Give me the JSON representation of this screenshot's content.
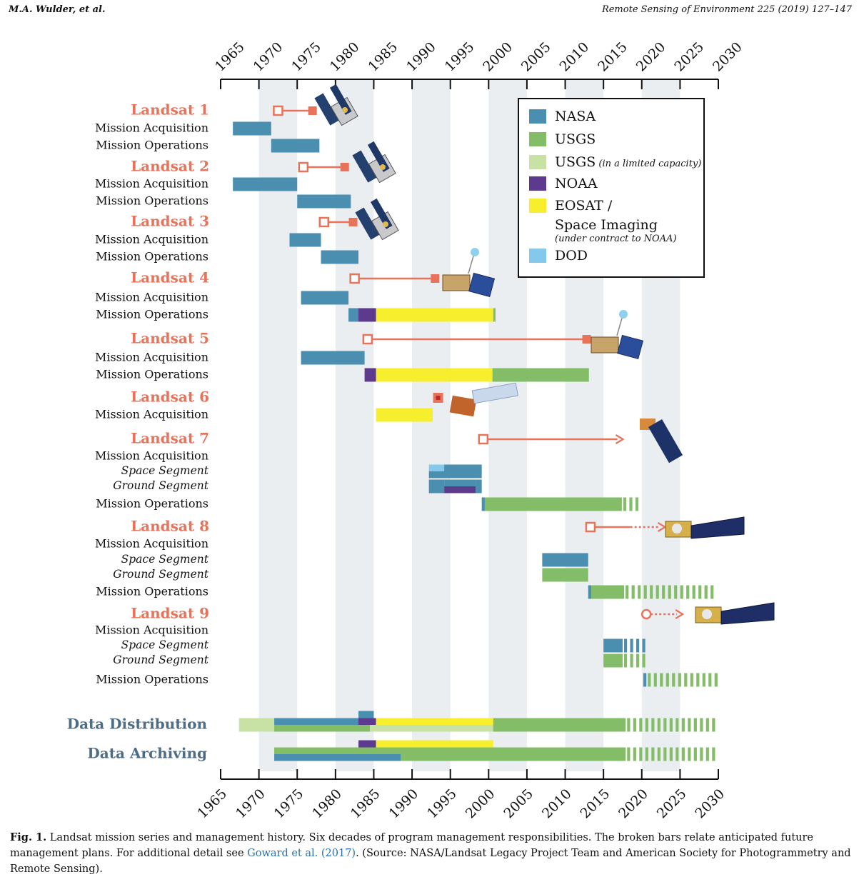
{
  "header": {
    "left": "M.A. Wulder, et al.",
    "right": "Remote Sensing of Environment 225 (2019) 127–147"
  },
  "colors": {
    "NASA": "#4a8eb0",
    "USGS": "#84bd68",
    "USGS_limited": "#c8e2a6",
    "NOAA": "#5d3a8e",
    "EOSAT": "#f7ee2e",
    "DOD": "#84c9ec",
    "landsat": "#e8735a",
    "section": "#4d6c86",
    "band": "#ebeef1"
  },
  "legend": [
    {
      "key": "NASA",
      "label": "NASA",
      "sub": ""
    },
    {
      "key": "USGS",
      "label": "USGS",
      "sub": ""
    },
    {
      "key": "USGS_limited",
      "label": "USGS",
      "sub": "(in a limited capacity)"
    },
    {
      "key": "NOAA",
      "label": "NOAA",
      "sub": ""
    },
    {
      "key": "EOSAT",
      "label": "EOSAT /",
      "label2": "Space Imaging",
      "sub2": "(under contract to NOAA)"
    },
    {
      "key": "DOD",
      "label": "DOD",
      "sub": ""
    }
  ],
  "caption": {
    "fig": "Fig. 1.",
    "text": "Landsat mission series and management history. Six decades of program management responsibilities. The broken bars relate anticipated future management plans. For additional detail see ",
    "link": "Goward et al. (2017)",
    "text2": ". (Source: NASA/Landsat Legacy Project Team and American Society for Photogrammetry and Remote Sensing)."
  },
  "chart_data": {
    "type": "gantt",
    "xlim": [
      1965,
      2030
    ],
    "xticks": [
      1965,
      1970,
      1975,
      1980,
      1985,
      1990,
      1995,
      2000,
      2005,
      2010,
      2015,
      2020,
      2025,
      2030
    ],
    "rows": [
      {
        "id": "L1",
        "label": "Landsat 1",
        "kind": "title",
        "lifeline": {
          "start": 1972.5,
          "end": 1977,
          "end_style": "solid"
        }
      },
      {
        "id": "L1a",
        "label": "Mission Acquisition",
        "kind": "item",
        "bars": [
          {
            "s": 1966.6,
            "e": 1971.6,
            "agency": "NASA"
          }
        ]
      },
      {
        "id": "L1o",
        "label": "Mission Operations",
        "kind": "item",
        "bars": [
          {
            "s": 1971.6,
            "e": 1977.9,
            "agency": "NASA"
          }
        ]
      },
      {
        "id": "L2",
        "label": "Landsat 2",
        "kind": "title",
        "lifeline": {
          "start": 1975.8,
          "end": 1981.2,
          "end_style": "solid"
        }
      },
      {
        "id": "L2a",
        "label": "Mission Acquisition",
        "kind": "item",
        "bars": [
          {
            "s": 1966.6,
            "e": 1975,
            "agency": "NASA"
          }
        ]
      },
      {
        "id": "L2o",
        "label": "Mission Operations",
        "kind": "item",
        "bars": [
          {
            "s": 1975,
            "e": 1982,
            "agency": "NASA"
          }
        ]
      },
      {
        "id": "L3",
        "label": "Landsat 3",
        "kind": "title",
        "lifeline": {
          "start": 1978.5,
          "end": 1982.3,
          "end_style": "solid"
        }
      },
      {
        "id": "L3a",
        "label": "Mission Acquisition",
        "kind": "item",
        "bars": [
          {
            "s": 1974,
            "e": 1978.1,
            "agency": "NASA"
          }
        ]
      },
      {
        "id": "L3o",
        "label": "Mission Operations",
        "kind": "item",
        "bars": [
          {
            "s": 1978.1,
            "e": 1983,
            "agency": "NASA"
          }
        ]
      },
      {
        "id": "L4",
        "label": "Landsat 4",
        "kind": "title",
        "lifeline": {
          "start": 1982.5,
          "end": 1993,
          "end_style": "solid"
        }
      },
      {
        "id": "L4a",
        "label": "Mission Acquisition",
        "kind": "item",
        "bars": [
          {
            "s": 1975.5,
            "e": 1981.7,
            "agency": "NASA"
          }
        ]
      },
      {
        "id": "L4o",
        "label": "Mission Operations",
        "kind": "item",
        "bars": [
          {
            "s": 1981.7,
            "e": 1983,
            "agency": "NASA"
          },
          {
            "s": 1983,
            "e": 1985.3,
            "agency": "NOAA"
          },
          {
            "s": 1985.3,
            "e": 2000.6,
            "agency": "EOSAT"
          },
          {
            "s": 2000.6,
            "e": 2000.9,
            "agency": "USGS"
          }
        ]
      },
      {
        "id": "L5",
        "label": "Landsat 5",
        "kind": "title",
        "lifeline": {
          "start": 1984.2,
          "end": 2012.8,
          "end_style": "solid"
        }
      },
      {
        "id": "L5a",
        "label": "Mission Acquisition",
        "kind": "item",
        "bars": [
          {
            "s": 1975.5,
            "e": 1983.8,
            "agency": "NASA"
          }
        ]
      },
      {
        "id": "L5o",
        "label": "Mission Operations",
        "kind": "item",
        "bars": [
          {
            "s": 1983.8,
            "e": 1985.3,
            "agency": "NOAA"
          },
          {
            "s": 1985.3,
            "e": 2000.5,
            "agency": "EOSAT"
          },
          {
            "s": 2000.5,
            "e": 2013.1,
            "agency": "USGS"
          }
        ]
      },
      {
        "id": "L6",
        "label": "Landsat 6",
        "kind": "title",
        "lifeline": {
          "start": 1993.4,
          "end": 1993.4,
          "end_style": "failed"
        }
      },
      {
        "id": "L6a",
        "label": "Mission Acquisition",
        "kind": "item",
        "bars": [
          {
            "s": 1985.3,
            "e": 1992.7,
            "agency": "EOSAT"
          }
        ]
      },
      {
        "id": "L7",
        "label": "Landsat 7",
        "kind": "title",
        "lifeline": {
          "start": 1999.3,
          "end": 2016.8,
          "end_style": "arrow",
          "future_from": 2016.8
        }
      },
      {
        "id": "L7a",
        "label": "Mission Acquisition",
        "kind": "item",
        "bars": []
      },
      {
        "id": "L7s",
        "label": "Space Segment",
        "kind": "sub",
        "bars": [
          {
            "s": 1992.2,
            "e": 1994.2,
            "agency": "DOD",
            "half": "top"
          },
          {
            "s": 1994.2,
            "e": 1999.1,
            "agency": "NASA",
            "half": "top"
          },
          {
            "s": 1992.2,
            "e": 1999.1,
            "agency": "NASA",
            "half": "bottom"
          }
        ]
      },
      {
        "id": "L7g",
        "label": "Ground Segment",
        "kind": "sub",
        "bars": [
          {
            "s": 1992.2,
            "e": 1994.2,
            "agency": "NASA"
          },
          {
            "s": 1994.2,
            "e": 1998.3,
            "agency": "NOAA",
            "half": "bottom"
          },
          {
            "s": 1994.2,
            "e": 1998.3,
            "agency": "NASA",
            "half": "top"
          },
          {
            "s": 1998.3,
            "e": 1999.1,
            "agency": "NASA"
          }
        ]
      },
      {
        "id": "L7o",
        "label": "Mission Operations",
        "kind": "item",
        "bars": [
          {
            "s": 1999.1,
            "e": 1999.5,
            "agency": "NASA"
          },
          {
            "s": 1999.5,
            "e": 2017.4,
            "agency": "USGS"
          },
          {
            "s": 2017.4,
            "e": 2020,
            "agency": "USGS",
            "future": true
          }
        ]
      },
      {
        "id": "L8",
        "label": "Landsat 8",
        "kind": "title",
        "lifeline": {
          "start": 2013.3,
          "end": 2022.3,
          "end_style": "arrow",
          "future_from": 2018.5
        }
      },
      {
        "id": "L8a",
        "label": "Mission Acquisition",
        "kind": "item",
        "bars": []
      },
      {
        "id": "L8s",
        "label": "Space Segment",
        "kind": "sub",
        "bars": [
          {
            "s": 2007,
            "e": 2013,
            "agency": "NASA"
          }
        ]
      },
      {
        "id": "L8g",
        "label": "Ground Segment",
        "kind": "sub",
        "bars": [
          {
            "s": 2007,
            "e": 2013,
            "agency": "USGS"
          }
        ]
      },
      {
        "id": "L8o",
        "label": "Mission Operations",
        "kind": "item",
        "bars": [
          {
            "s": 2013,
            "e": 2013.4,
            "agency": "NASA"
          },
          {
            "s": 2013.4,
            "e": 2017.7,
            "agency": "USGS"
          },
          {
            "s": 2017.7,
            "e": 2030,
            "agency": "USGS",
            "future": true
          }
        ]
      },
      {
        "id": "L9",
        "label": "Landsat 9",
        "kind": "title",
        "lifeline": {
          "start": 2020.6,
          "end": 2024.6,
          "end_style": "arrow",
          "future_from": 2020.6,
          "planned": true
        }
      },
      {
        "id": "L9a",
        "label": "Mission Acquisition",
        "kind": "item",
        "bars": []
      },
      {
        "id": "L9s",
        "label": "Space Segment",
        "kind": "sub",
        "bars": [
          {
            "s": 2015,
            "e": 2017.5,
            "agency": "NASA"
          },
          {
            "s": 2017.5,
            "e": 2020.6,
            "agency": "NASA",
            "future": true
          }
        ]
      },
      {
        "id": "L9g",
        "label": "Ground Segment",
        "kind": "sub",
        "bars": [
          {
            "s": 2015,
            "e": 2017.5,
            "agency": "USGS"
          },
          {
            "s": 2017.5,
            "e": 2020.6,
            "agency": "USGS",
            "future": true
          }
        ]
      },
      {
        "id": "L9o",
        "label": "Mission Operations",
        "kind": "item",
        "bars": [
          {
            "s": 2020.2,
            "e": 2020.6,
            "agency": "NASA"
          },
          {
            "s": 2020.6,
            "e": 2030,
            "agency": "USGS",
            "future": true
          }
        ]
      },
      {
        "id": "DD",
        "label": "Data Distribution",
        "kind": "section",
        "bars": [
          {
            "s": 1967.4,
            "e": 1972,
            "agency": "USGS_limited",
            "half": "full"
          },
          {
            "s": 1972,
            "e": 1983,
            "agency": "NASA",
            "half": "top"
          },
          {
            "s": 1983,
            "e": 1985,
            "agency": "NASA",
            "half": "above"
          },
          {
            "s": 1983,
            "e": 1985.3,
            "agency": "NOAA",
            "half": "top"
          },
          {
            "s": 1985.3,
            "e": 2000.6,
            "agency": "EOSAT",
            "half": "top"
          },
          {
            "s": 1972,
            "e": 1984.5,
            "agency": "USGS",
            "half": "bottom"
          },
          {
            "s": 1984.5,
            "e": 2000.6,
            "agency": "USGS_limited",
            "half": "bottom"
          },
          {
            "s": 2000.6,
            "e": 2017.9,
            "agency": "USGS",
            "half": "full"
          },
          {
            "s": 2017.9,
            "e": 2030,
            "agency": "USGS",
            "half": "full",
            "future": true
          }
        ]
      },
      {
        "id": "DA",
        "label": "Data Archiving",
        "kind": "section",
        "bars": [
          {
            "s": 1983,
            "e": 1985.3,
            "agency": "NOAA",
            "half": "above"
          },
          {
            "s": 1985.3,
            "e": 2000.6,
            "agency": "EOSAT",
            "half": "above"
          },
          {
            "s": 1972,
            "e": 2017.9,
            "agency": "USGS",
            "half": "top"
          },
          {
            "s": 1972,
            "e": 1988.5,
            "agency": "NASA",
            "half": "bottom"
          },
          {
            "s": 1988.5,
            "e": 2017.9,
            "agency": "USGS",
            "half": "bottom"
          },
          {
            "s": 2017.9,
            "e": 2030,
            "agency": "USGS",
            "half": "full",
            "future": true
          }
        ]
      }
    ]
  }
}
